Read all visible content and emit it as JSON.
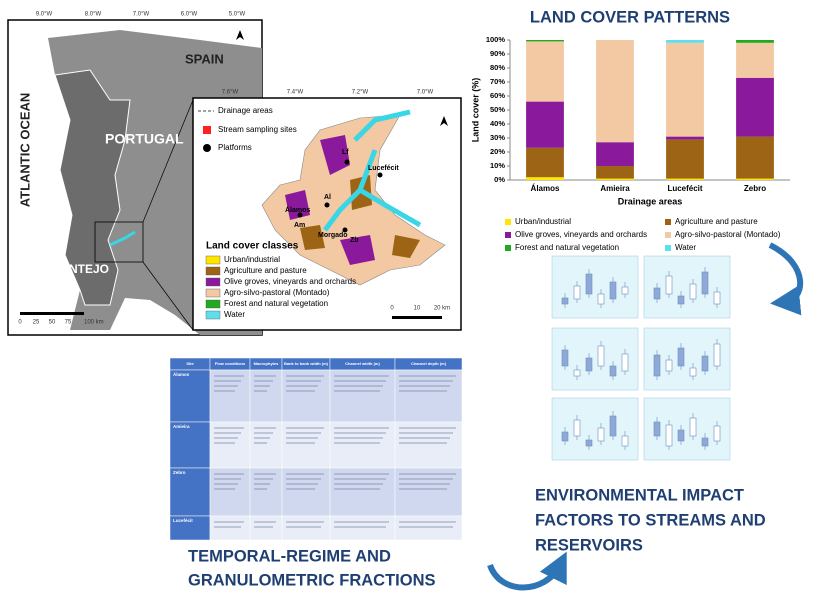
{
  "map": {
    "countries": [
      "SPAIN",
      "PORTUGAL"
    ],
    "ocean": "ATLANTIC OCEAN",
    "region": "ALENTEJO",
    "lon_ticks": [
      "9.0°W",
      "8.0°W",
      "7.0°W",
      "6.0°W",
      "5.0°W"
    ],
    "scale_ticks": [
      "0",
      "25",
      "50",
      "75",
      "100 km"
    ],
    "inset": {
      "lon_ticks": [
        "7.6°W",
        "7.4°W",
        "7.2°W",
        "7.0°W"
      ],
      "legend": [
        "Drainage areas",
        "Stream sampling sites",
        "Platforms"
      ],
      "classes_title": "Land cover classes",
      "sites": [
        "Lf",
        "Lucefécit",
        "Al",
        "Álamos",
        "Am",
        "Morgado",
        "Zb"
      ],
      "scale_ticks": [
        "0",
        "10",
        "20 km"
      ]
    }
  },
  "chart_data": {
    "type": "bar",
    "stacked": true,
    "title": "LAND COVER PATTERNS",
    "xlabel": "Drainage areas",
    "ylabel": "Land cover (%)",
    "categories": [
      "Álamos",
      "Amieira",
      "Lucefécit",
      "Zebro"
    ],
    "series": [
      {
        "name": "Urban/industrial",
        "color": "#ffe500",
        "values": [
          2,
          1,
          1,
          1
        ]
      },
      {
        "name": "Agriculture and pasture",
        "color": "#9c6414",
        "values": [
          21,
          9,
          28,
          30
        ]
      },
      {
        "name": "Olive groves, vineyards and orchards",
        "color": "#8a1a9b",
        "values": [
          33,
          17,
          2,
          42
        ]
      },
      {
        "name": "Agro-silvo-pastoral (Montado)",
        "color": "#f2c9a3",
        "values": [
          43,
          73,
          67,
          25
        ]
      },
      {
        "name": "Forest and natural vegetation",
        "color": "#1faa1f",
        "values": [
          1,
          0,
          0,
          2
        ]
      },
      {
        "name": "Water",
        "color": "#5ee0ec",
        "values": [
          0,
          0,
          2,
          0
        ]
      }
    ],
    "ylim": [
      0,
      100
    ],
    "yticks": [
      {
        "value": 0,
        "label": "0%"
      },
      {
        "value": 10,
        "label": "10%"
      },
      {
        "value": 20,
        "label": "20%"
      },
      {
        "value": 30,
        "label": "30%"
      },
      {
        "value": 40,
        "label": "40%"
      },
      {
        "value": 50,
        "label": "50%"
      },
      {
        "value": 60,
        "label": "60%"
      },
      {
        "value": 70,
        "label": "70%"
      },
      {
        "value": 80,
        "label": "80%"
      },
      {
        "value": 90,
        "label": "90%"
      },
      {
        "value": 100,
        "label": "100%"
      }
    ],
    "grid": false,
    "legend": "bottom"
  },
  "table": {
    "header": [
      "Site",
      "Flow conditions",
      "Macrophytes",
      "Bank to bank width (m)",
      "Channel width (m)",
      "Channel depth (m)"
    ],
    "rows": [
      "Álamos",
      "Amieira",
      "Zebro",
      "Lucefécit"
    ]
  },
  "sections": {
    "impact": [
      "ENVIRONMENTAL IMPACT",
      "FACTORS TO STREAMS AND",
      "RESERVOIRS"
    ],
    "temporal": [
      "TEMPORAL-REGIME AND",
      "GRANULOMETRIC FRACTIONS"
    ]
  }
}
